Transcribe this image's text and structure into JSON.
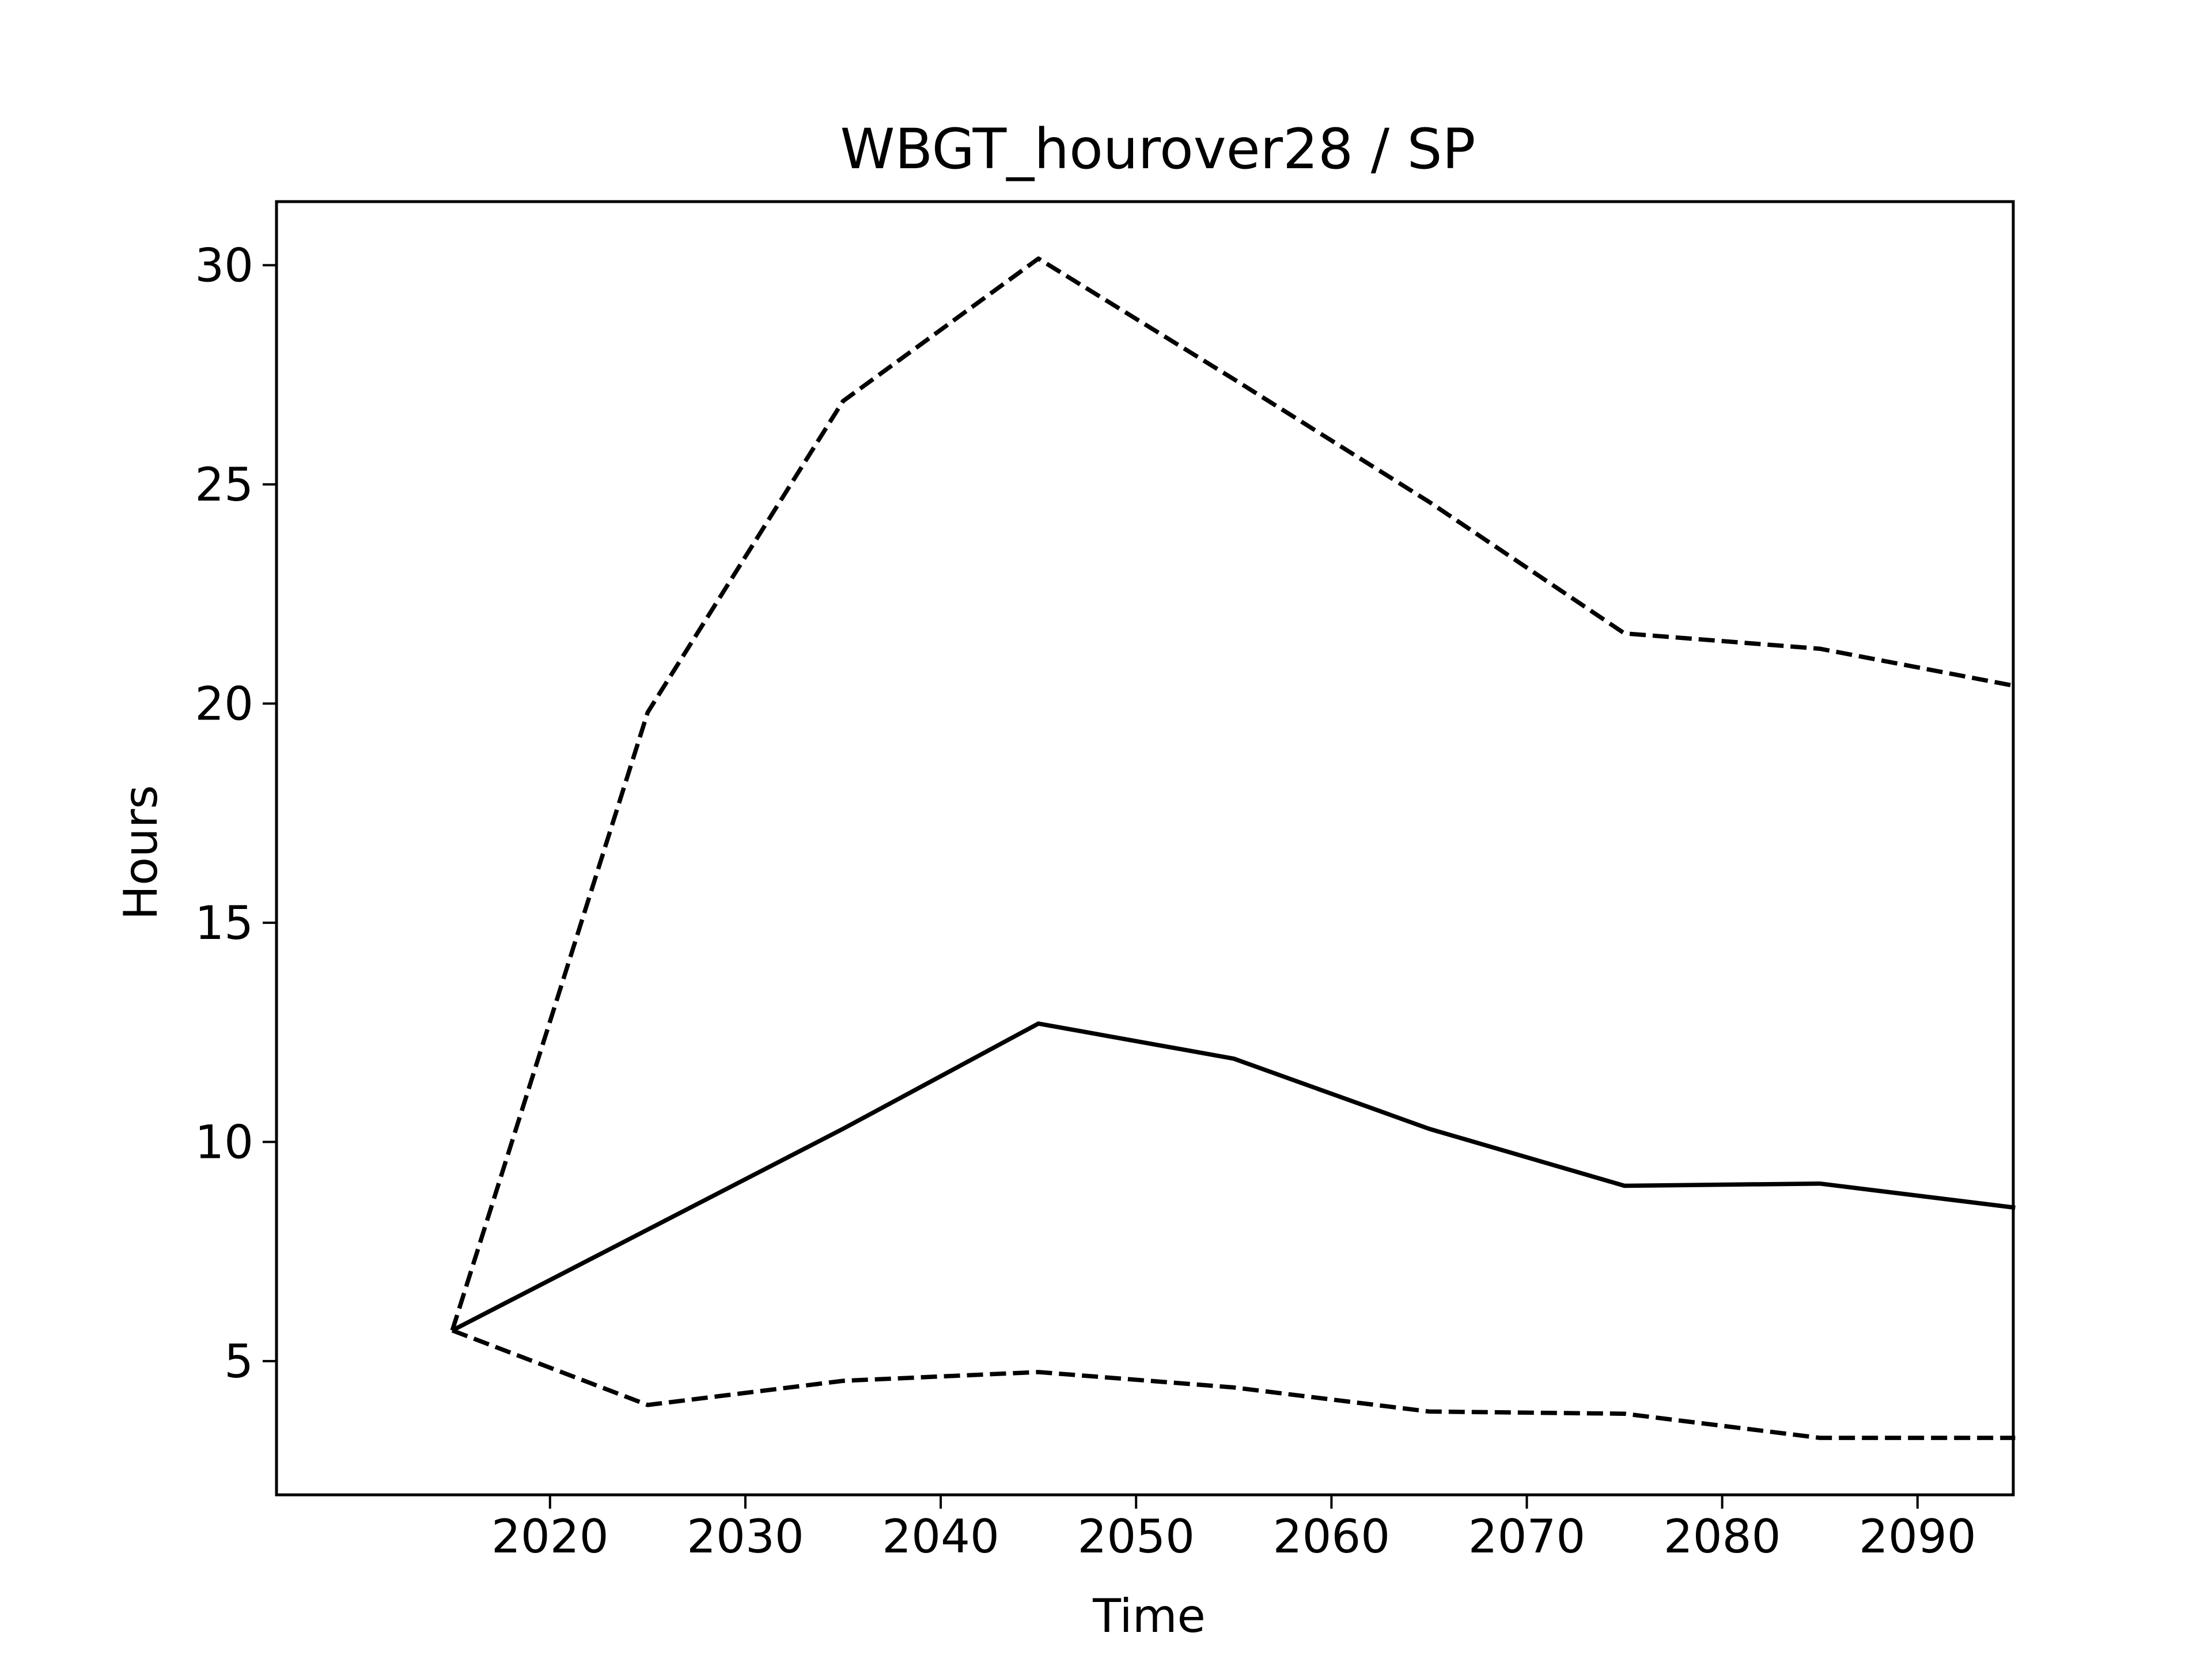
{
  "chart_data": {
    "type": "line",
    "title": "WBGT_hourover28 / SP",
    "xlabel": "Time",
    "ylabel": "Hours",
    "x": [
      2015,
      2025,
      2035,
      2045,
      2055,
      2065,
      2075,
      2085,
      2095
    ],
    "xlim": [
      2006,
      2094.9
    ],
    "ylim": [
      1.95,
      31.45
    ],
    "xticks": [
      2020,
      2030,
      2040,
      2050,
      2060,
      2070,
      2080,
      2090
    ],
    "yticks": [
      5,
      10,
      15,
      20,
      25,
      30
    ],
    "grid": false,
    "legend": "none",
    "series": [
      {
        "style": "solid",
        "color": "#000000",
        "values": [
          5.7,
          8.0,
          10.3,
          12.7,
          11.9,
          10.3,
          9.0,
          9.05,
          8.5
        ]
      },
      {
        "style": "dashed",
        "color": "#000000",
        "values": [
          5.7,
          19.8,
          26.9,
          30.15,
          27.4,
          24.6,
          21.6,
          21.25,
          20.4
        ]
      },
      {
        "style": "dashed",
        "color": "#000000",
        "values": [
          5.7,
          4.0,
          4.55,
          4.75,
          4.4,
          3.85,
          3.8,
          3.25,
          3.25
        ]
      }
    ]
  }
}
